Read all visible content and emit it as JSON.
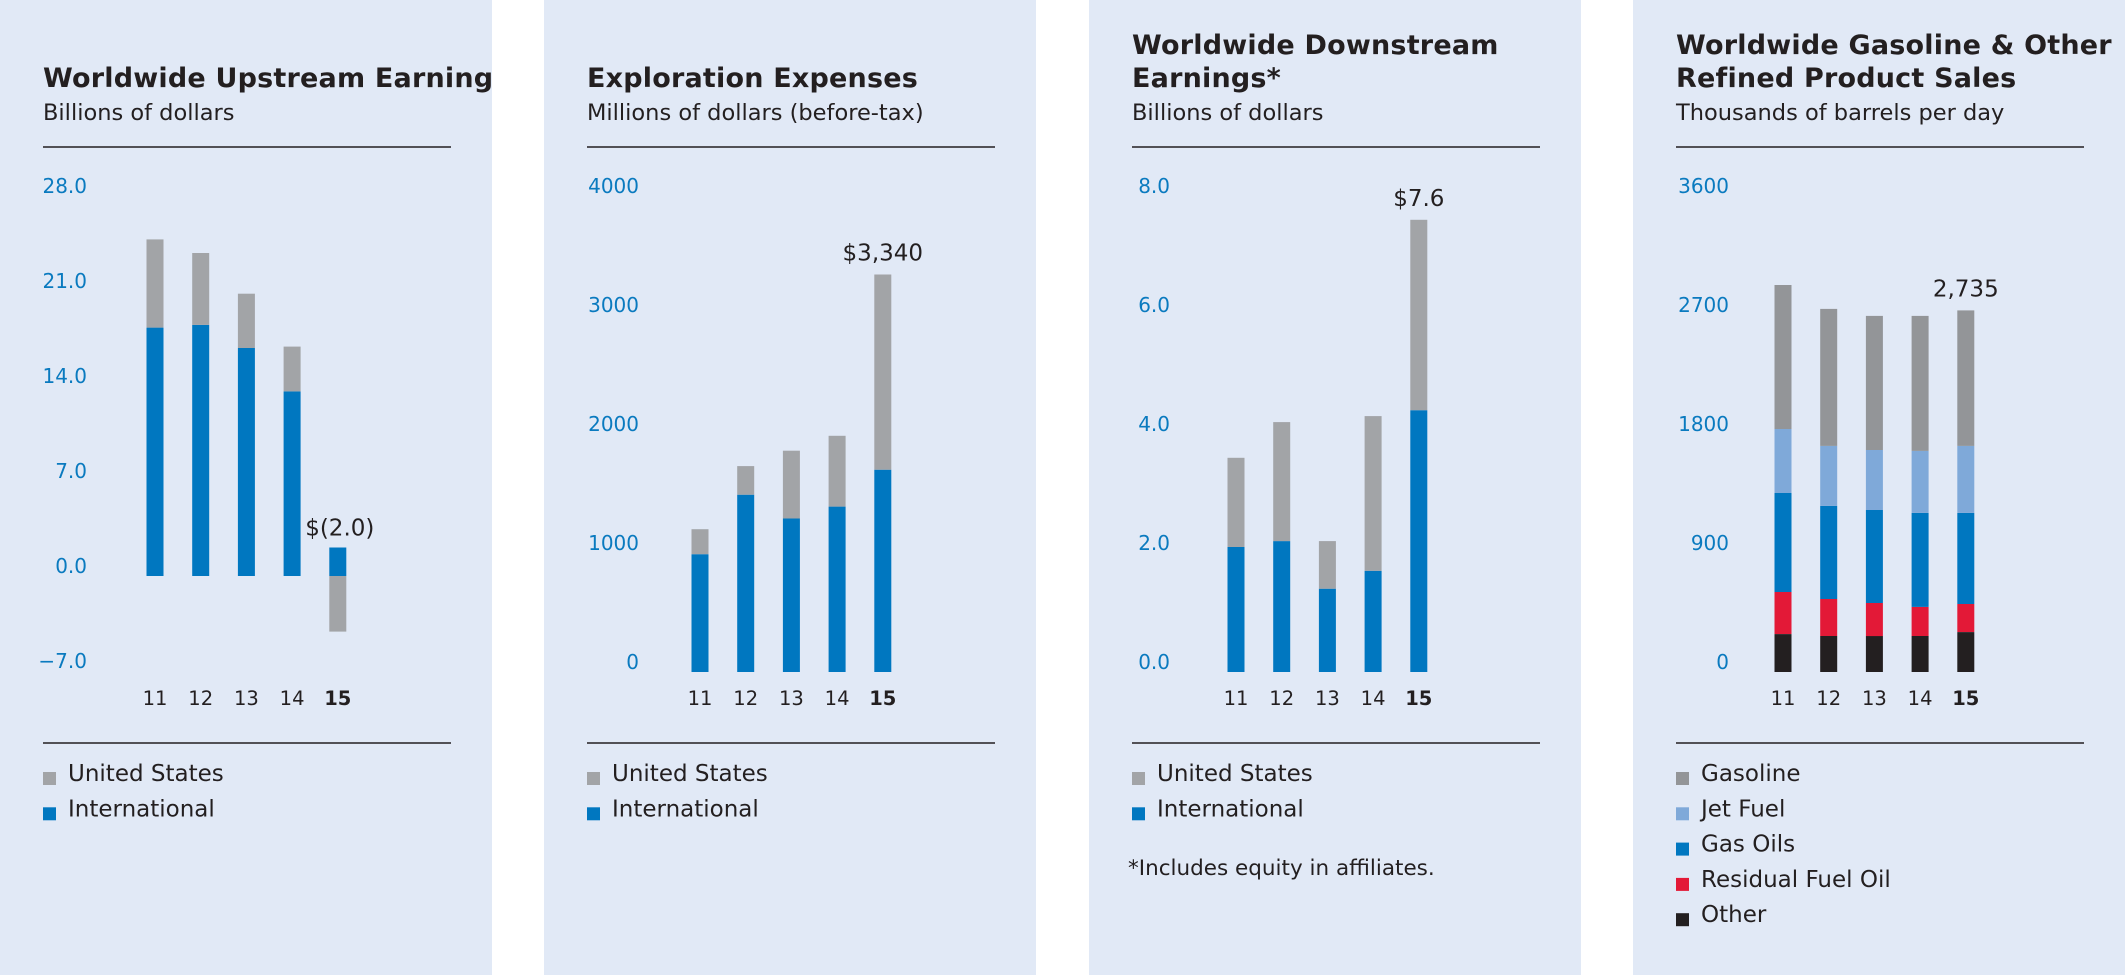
{
  "colors": {
    "panel_bg": "#e1e9f6",
    "tick_blue": "#0a7abf",
    "us_gray": "#a2a4a7",
    "international_blue": "#0077c0",
    "gasoline_gray": "#939598",
    "jet_fuel_lightblue": "#7fa9d9",
    "gas_oils_blue": "#0077c0",
    "residual_red": "#e31937",
    "other_black": "#231f20"
  },
  "chart_data": [
    {
      "id": "upstream",
      "type": "bar",
      "stacked": true,
      "title_lines": [
        "Worldwide Upstream Earnings"
      ],
      "subtitle": "Billions of dollars",
      "categories": [
        "11",
        "12",
        "13",
        "14",
        "15"
      ],
      "highlight_category": "15",
      "yticks": [
        "28.0",
        "21.0",
        "14.0",
        "7.0",
        "0.0",
        "−7.0"
      ],
      "ytick_values": [
        28,
        21,
        14,
        7,
        0,
        -7
      ],
      "ylim": [
        -7,
        28
      ],
      "series": [
        {
          "name": "International",
          "color_key": "international_blue",
          "values": [
            18.3,
            18.5,
            16.8,
            13.6,
            2.1
          ]
        },
        {
          "name": "United States",
          "color_key": "us_gray",
          "values": [
            6.5,
            5.3,
            4.0,
            3.3,
            -4.1
          ]
        }
      ],
      "value_label": {
        "category": "15",
        "text": "$(2.0)"
      },
      "legend": [
        {
          "name": "United States",
          "color_key": "us_gray"
        },
        {
          "name": "International",
          "color_key": "international_blue"
        }
      ],
      "footnote": ""
    },
    {
      "id": "exploration",
      "type": "bar",
      "stacked": true,
      "title_lines": [
        "Exploration Expenses"
      ],
      "subtitle": "Millions of dollars (before-tax)",
      "categories": [
        "11",
        "12",
        "13",
        "14",
        "15"
      ],
      "highlight_category": "15",
      "yticks": [
        "4000",
        "3000",
        "2000",
        "1000",
        "0"
      ],
      "ytick_values": [
        4000,
        3000,
        2000,
        1000,
        0
      ],
      "ylim": [
        0,
        4000
      ],
      "series": [
        {
          "name": "International",
          "color_key": "international_blue",
          "values": [
            990,
            1490,
            1290,
            1390,
            1700
          ]
        },
        {
          "name": "United States",
          "color_key": "us_gray",
          "values": [
            210,
            240,
            570,
            595,
            1640
          ]
        }
      ],
      "value_label": {
        "category": "15",
        "text": "$3,340"
      },
      "legend": [
        {
          "name": "United States",
          "color_key": "us_gray"
        },
        {
          "name": "International",
          "color_key": "international_blue"
        }
      ],
      "footnote": ""
    },
    {
      "id": "downstream",
      "type": "bar",
      "stacked": true,
      "title_lines": [
        "Worldwide Downstream",
        "Earnings*"
      ],
      "subtitle": "Billions of dollars",
      "categories": [
        "11",
        "12",
        "13",
        "14",
        "15"
      ],
      "highlight_category": "15",
      "yticks": [
        "8.0",
        "6.0",
        "4.0",
        "2.0",
        "0.0"
      ],
      "ytick_values": [
        8,
        6,
        4,
        2,
        0
      ],
      "ylim": [
        0,
        8
      ],
      "series": [
        {
          "name": "International",
          "color_key": "international_blue",
          "values": [
            2.1,
            2.2,
            1.4,
            1.7,
            4.4
          ]
        },
        {
          "name": "United States",
          "color_key": "us_gray",
          "values": [
            1.5,
            2.0,
            0.8,
            2.6,
            3.2
          ]
        }
      ],
      "value_label": {
        "category": "15",
        "text": "$7.6"
      },
      "legend": [
        {
          "name": "United States",
          "color_key": "us_gray"
        },
        {
          "name": "International",
          "color_key": "international_blue"
        }
      ],
      "footnote": "*Includes equity in affiliates."
    },
    {
      "id": "refined-products",
      "type": "bar",
      "stacked": true,
      "title_lines": [
        "Worldwide Gasoline & Other",
        "Refined Product Sales"
      ],
      "subtitle": "Thousands of barrels per day",
      "categories": [
        "11",
        "12",
        "13",
        "14",
        "15"
      ],
      "highlight_category": "15",
      "yticks": [
        "3600",
        "2700",
        "1800",
        "900",
        "0"
      ],
      "ytick_values": [
        3600,
        2700,
        1800,
        900,
        0
      ],
      "ylim": [
        0,
        3600
      ],
      "series": [
        {
          "name": "Other",
          "color_key": "other_black",
          "values": [
            287,
            272,
            272,
            272,
            302
          ]
        },
        {
          "name": "Residual Fuel Oil",
          "color_key": "residual_red",
          "values": [
            318,
            280,
            250,
            220,
            212
          ]
        },
        {
          "name": "Gas Oils",
          "color_key": "gas_oils_blue",
          "values": [
            749,
            704,
            703,
            711,
            689
          ]
        },
        {
          "name": "Jet Fuel",
          "color_key": "jet_fuel_lightblue",
          "values": [
            484,
            454,
            454,
            469,
            507
          ]
        },
        {
          "name": "Gasoline",
          "color_key": "gasoline_gray",
          "values": [
            1089,
            1036,
            1014,
            1021,
            1025
          ]
        }
      ],
      "value_label": {
        "category": "15",
        "text": "2,735"
      },
      "legend": [
        {
          "name": "Gasoline",
          "color_key": "gasoline_gray"
        },
        {
          "name": "Jet Fuel",
          "color_key": "jet_fuel_lightblue"
        },
        {
          "name": "Gas Oils",
          "color_key": "gas_oils_blue"
        },
        {
          "name": "Residual Fuel Oil",
          "color_key": "residual_red"
        },
        {
          "name": "Other",
          "color_key": "other_black"
        }
      ],
      "footnote": ""
    }
  ]
}
